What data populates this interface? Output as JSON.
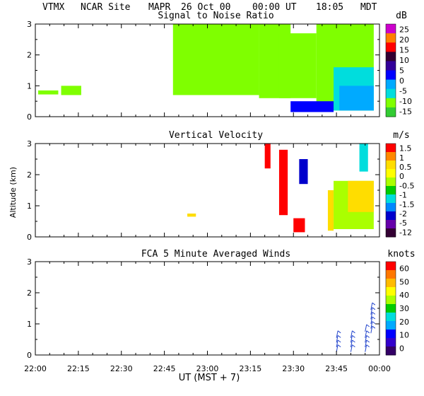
{
  "header": {
    "site": "VTMX",
    "location": "NCAR Site",
    "instrument": "MAPR",
    "date": "26 Oct 00",
    "time_ut": "00:00 UT",
    "time_local": "18:05",
    "tz": "MDT"
  },
  "x_axis": {
    "label": "UT  (MST + 7)",
    "ticks": [
      "22:00",
      "22:15",
      "22:30",
      "22:45",
      "23:00",
      "23:15",
      "23:30",
      "23:45",
      "00:00"
    ],
    "range_minutes": [
      0,
      120
    ]
  },
  "y_axis": {
    "label": "Altitude (km)",
    "ticks": [
      "0",
      "1",
      "2",
      "3"
    ],
    "range": [
      0,
      3
    ]
  },
  "chart_data": [
    {
      "type": "heatmap",
      "title": "Signal to Noise Ratio",
      "units": "dB",
      "ylim": [
        0,
        3
      ],
      "xlim_minutes": [
        0,
        120
      ],
      "legend": {
        "labels": [
          "25",
          "20",
          "15",
          "10",
          "5",
          "0",
          "-5",
          "-10",
          "-15"
        ],
        "colors": [
          "#cc00cc",
          "#ff7f00",
          "#ff0000",
          "#330033",
          "#330099",
          "#0000ff",
          "#00aaff",
          "#00dddd",
          "#7fff00",
          "#33cc33"
        ]
      },
      "regions": [
        {
          "t0": 1,
          "t1": 8,
          "z0": 0.72,
          "z1": 0.85,
          "value": -15
        },
        {
          "t0": 9,
          "t1": 16,
          "z0": 0.7,
          "z1": 1.0,
          "value": -15
        },
        {
          "t0": 48,
          "t1": 78,
          "z0": 0.7,
          "z1": 3.0,
          "value": -15
        },
        {
          "t0": 78,
          "t1": 89,
          "z0": 0.6,
          "z1": 3.0,
          "value": -14
        },
        {
          "t0": 85,
          "t1": 98,
          "z0": 0.6,
          "z1": 2.7,
          "value": -12
        },
        {
          "t0": 98,
          "t1": 118,
          "z0": 0.2,
          "z1": 3.0,
          "value": -13
        },
        {
          "t0": 104,
          "t1": 118,
          "z0": 0.2,
          "z1": 1.6,
          "value": -8
        },
        {
          "t0": 106,
          "t1": 118,
          "z0": 0.2,
          "z1": 1.0,
          "value": -3
        },
        {
          "t0": 89,
          "t1": 104,
          "z0": 0.15,
          "z1": 0.5,
          "value": 0
        }
      ]
    },
    {
      "type": "heatmap",
      "title": "Vertical Velocity",
      "units": "m/s",
      "ylim": [
        0,
        3
      ],
      "xlim_minutes": [
        0,
        120
      ],
      "legend": {
        "labels": [
          "1.5",
          "1",
          "0.5",
          "0",
          "-0.5",
          "-1",
          "-1.5",
          "-2",
          "-5",
          "-12"
        ],
        "colors": [
          "#ff0000",
          "#ff8800",
          "#ffdd00",
          "#ffff00",
          "#aaff00",
          "#00cc00",
          "#00dddd",
          "#0088ff",
          "#0000cc",
          "#6600aa",
          "#330033"
        ]
      },
      "regions": [
        {
          "t0": 80,
          "t1": 82,
          "z0": 2.2,
          "z1": 3.0,
          "value": 1.5
        },
        {
          "t0": 85,
          "t1": 88,
          "z0": 0.7,
          "z1": 2.8,
          "value": 1.5
        },
        {
          "t0": 90,
          "t1": 94,
          "z0": 0.15,
          "z1": 0.6,
          "value": 1.5
        },
        {
          "t0": 102,
          "t1": 104,
          "z0": 0.2,
          "z1": 1.5,
          "value": 0.5
        },
        {
          "t0": 104,
          "t1": 118,
          "z0": 0.25,
          "z1": 1.8,
          "value": -0.5
        },
        {
          "t0": 109,
          "t1": 118,
          "z0": 0.8,
          "z1": 1.8,
          "value": 0.5
        },
        {
          "t0": 92,
          "t1": 95,
          "z0": 1.7,
          "z1": 2.5,
          "value": -5
        },
        {
          "t0": 113,
          "t1": 116,
          "z0": 2.1,
          "z1": 3.0,
          "value": -1.5
        },
        {
          "t0": 53,
          "t1": 56,
          "z0": 0.65,
          "z1": 0.75,
          "value": 0.5
        }
      ]
    },
    {
      "type": "barbs",
      "title": "FCA 5 Minute Averaged Winds",
      "units": "knots",
      "ylim": [
        0,
        3
      ],
      "xlim_minutes": [
        0,
        120
      ],
      "legend": {
        "labels": [
          "60",
          "50",
          "40",
          "30",
          "20",
          "10",
          "0"
        ],
        "colors": [
          "#ff0000",
          "#ff7700",
          "#ffbb00",
          "#ffff00",
          "#aaff00",
          "#00cc00",
          "#00dddd",
          "#00aaff",
          "#0000ff",
          "#3300cc",
          "#330066"
        ]
      },
      "barbs": [
        {
          "t": 105,
          "heights": [
            0.1,
            0.25,
            0.4,
            0.55
          ],
          "speed": 10
        },
        {
          "t": 110,
          "heights": [
            0.1,
            0.25,
            0.4,
            0.55
          ],
          "speed": 10
        },
        {
          "t": 115,
          "heights": [
            0.1,
            0.25,
            0.4,
            0.55,
            0.75
          ],
          "speed": 10
        },
        {
          "t": 117,
          "heights": [
            0.7,
            0.85,
            1.0,
            1.15,
            1.3,
            1.45
          ],
          "speed": 10
        }
      ]
    }
  ]
}
